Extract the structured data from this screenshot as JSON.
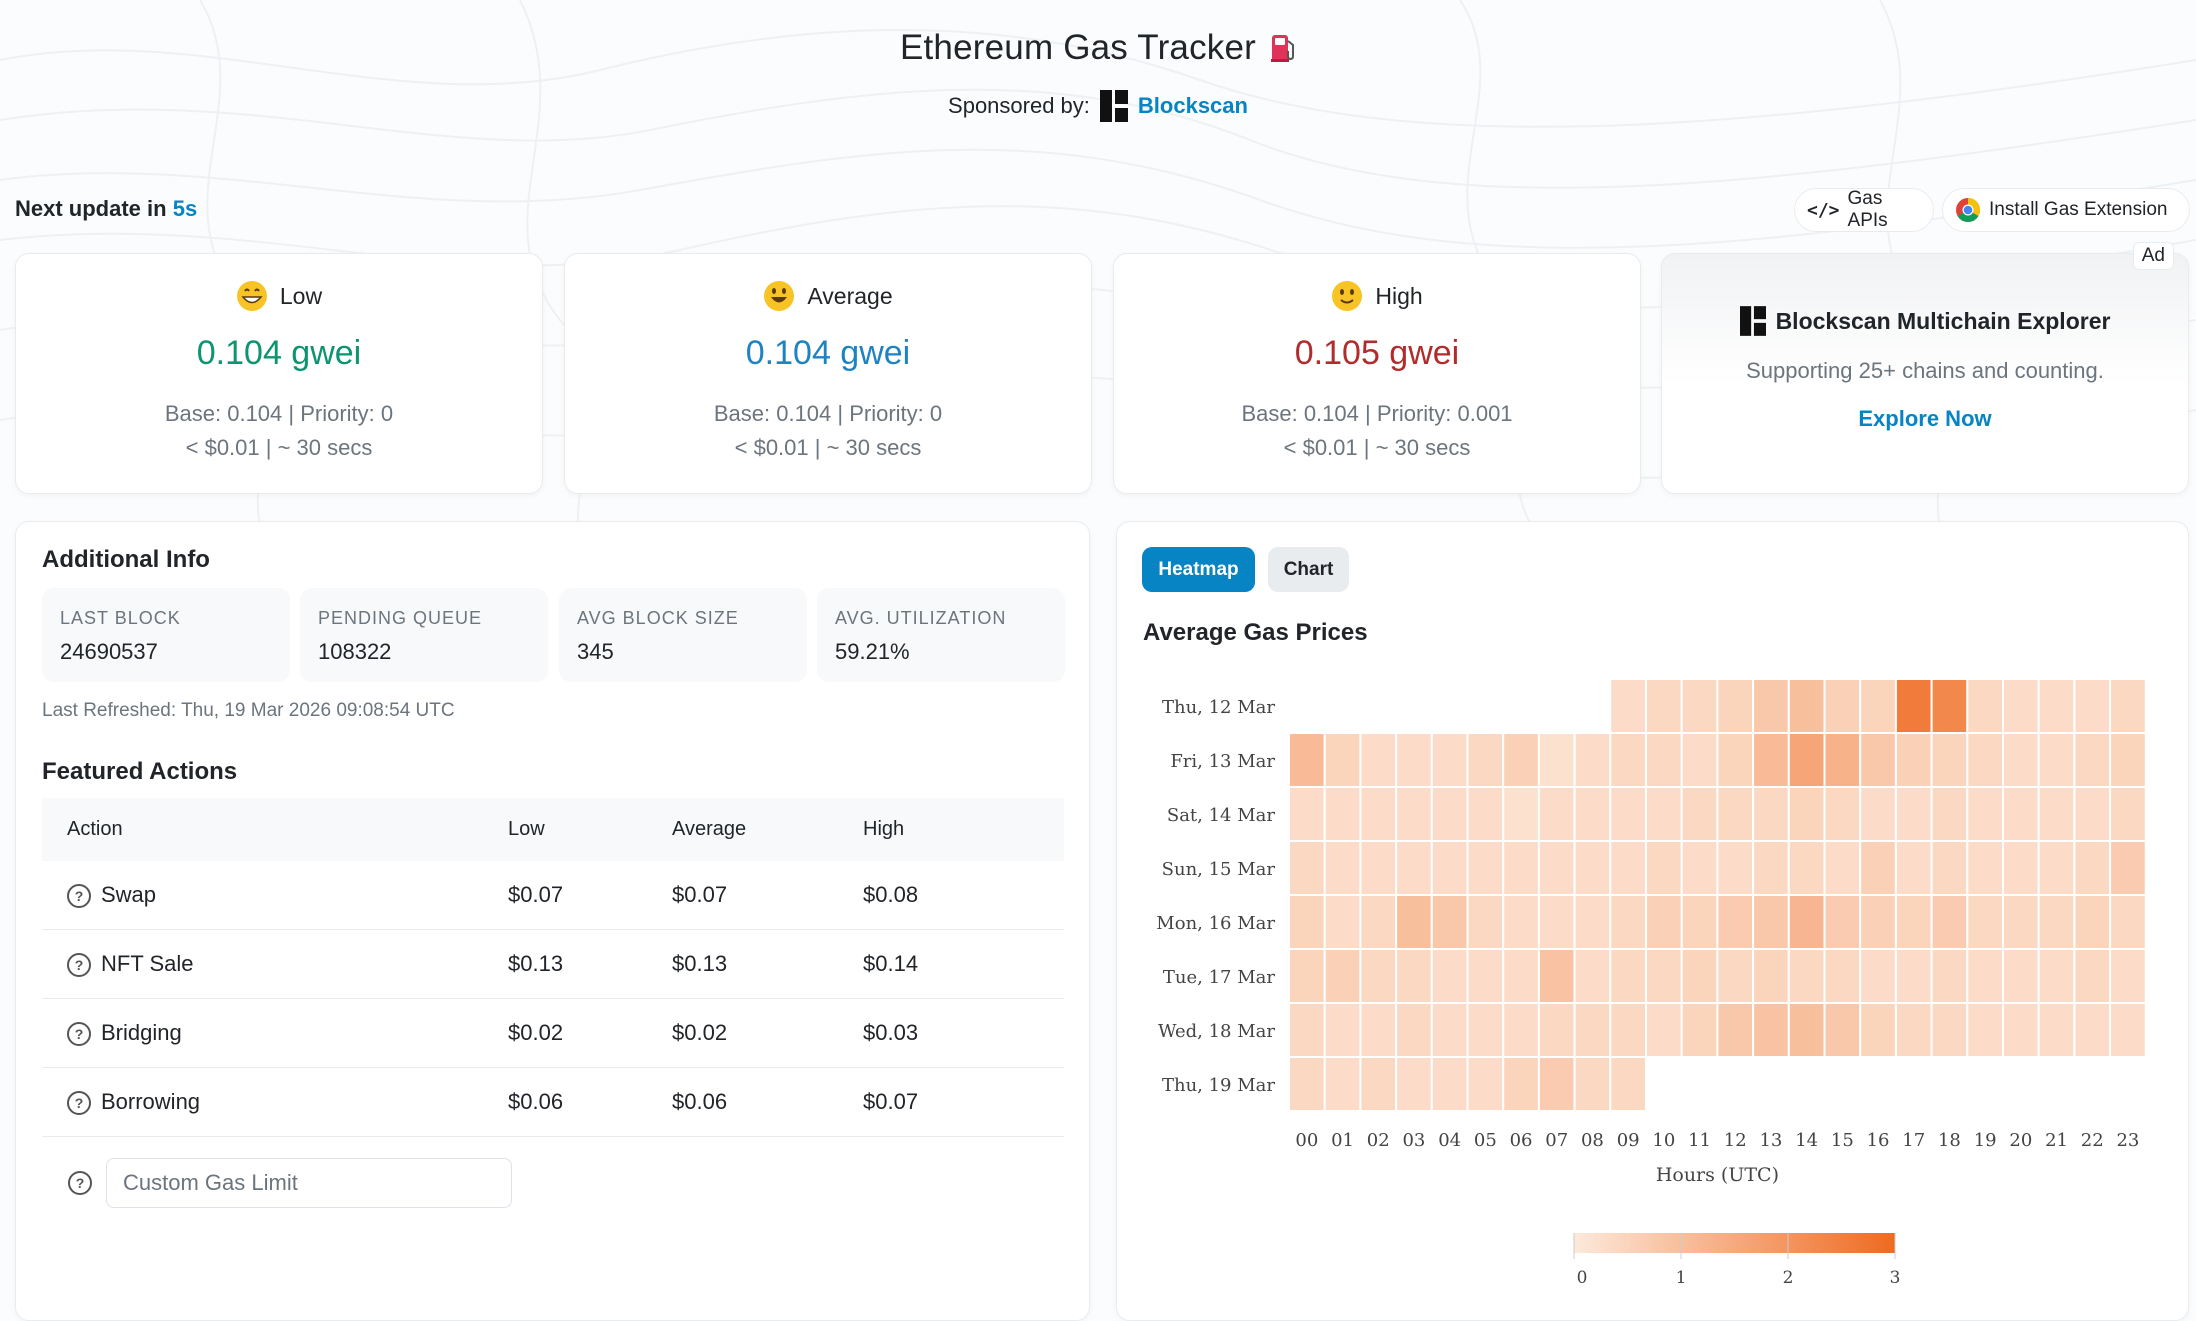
{
  "header": {
    "title": "Ethereum Gas Tracker",
    "sponsored_by": "Sponsored by:",
    "sponsor_name": "Blockscan"
  },
  "update": {
    "prefix": "Next update in",
    "seconds": "5s"
  },
  "top_buttons": {
    "gas_apis": "Gas APIs",
    "install_extension": "Install Gas Extension"
  },
  "gas_cards": [
    {
      "label": "Low",
      "value": "0.104 gwei",
      "detail": "Base: 0.104 | Priority: 0",
      "cost": "< $0.01 | ~ 30 secs",
      "color": "#0d9470"
    },
    {
      "label": "Average",
      "value": "0.104 gwei",
      "detail": "Base: 0.104 | Priority: 0",
      "cost": "< $0.01 | ~ 30 secs",
      "color": "#1e83c3"
    },
    {
      "label": "High",
      "value": "0.105 gwei",
      "detail": "Base: 0.104 | Priority: 0.001",
      "cost": "< $0.01 | ~ 30 secs",
      "color": "#b12d2d"
    }
  ],
  "ad": {
    "badge": "Ad",
    "title": "Blockscan Multichain Explorer",
    "subtitle": "Supporting 25+ chains and counting.",
    "link": "Explore Now"
  },
  "additional_info": {
    "title": "Additional Info",
    "stats": [
      {
        "label": "Last Block",
        "value": "24690537"
      },
      {
        "label": "Pending Queue",
        "value": "108322"
      },
      {
        "label": "Avg Block Size",
        "value": "345"
      },
      {
        "label": "Avg. Utilization",
        "value": "59.21%"
      }
    ],
    "last_refreshed": "Last Refreshed: Thu, 19 Mar 2026 09:08:54 UTC"
  },
  "featured_actions": {
    "title": "Featured Actions",
    "columns": [
      "Action",
      "Low",
      "Average",
      "High"
    ],
    "rows": [
      {
        "action": "Swap",
        "low": "$0.07",
        "average": "$0.07",
        "high": "$0.08"
      },
      {
        "action": "NFT Sale",
        "low": "$0.13",
        "average": "$0.13",
        "high": "$0.14"
      },
      {
        "action": "Bridging",
        "low": "$0.02",
        "average": "$0.02",
        "high": "$0.03"
      },
      {
        "action": "Borrowing",
        "low": "$0.06",
        "average": "$0.06",
        "high": "$0.07"
      }
    ],
    "custom_placeholder": "Custom Gas Limit"
  },
  "tabs": {
    "heatmap": "Heatmap",
    "chart": "Chart",
    "active": "heatmap"
  },
  "chart_data": {
    "type": "heatmap",
    "title": "Average Gas Prices",
    "xlabel": "Hours (UTC)",
    "ylabel": "",
    "x": [
      "00",
      "01",
      "02",
      "03",
      "04",
      "05",
      "06",
      "07",
      "08",
      "09",
      "10",
      "11",
      "12",
      "13",
      "14",
      "15",
      "16",
      "17",
      "18",
      "19",
      "20",
      "21",
      "22",
      "23"
    ],
    "y": [
      "Thu, 12 Mar",
      "Fri, 13 Mar",
      "Sat, 14 Mar",
      "Sun, 15 Mar",
      "Mon, 16 Mar",
      "Tue, 17 Mar",
      "Wed, 18 Mar",
      "Thu, 19 Mar"
    ],
    "values": [
      [
        null,
        null,
        null,
        null,
        null,
        null,
        null,
        null,
        null,
        0.3,
        0.4,
        0.4,
        0.5,
        0.8,
        1.0,
        0.6,
        0.5,
        2.6,
        2.3,
        0.4,
        0.3,
        0.3,
        0.3,
        0.4
      ],
      [
        1.1,
        0.5,
        0.3,
        0.3,
        0.3,
        0.4,
        0.6,
        0.2,
        0.3,
        0.4,
        0.4,
        0.3,
        0.5,
        1.1,
        1.6,
        1.3,
        0.8,
        0.6,
        0.5,
        0.4,
        0.3,
        0.3,
        0.4,
        0.5
      ],
      [
        0.3,
        0.3,
        0.3,
        0.3,
        0.3,
        0.3,
        0.2,
        0.3,
        0.3,
        0.3,
        0.3,
        0.4,
        0.4,
        0.4,
        0.5,
        0.4,
        0.3,
        0.3,
        0.4,
        0.3,
        0.3,
        0.3,
        0.3,
        0.4
      ],
      [
        0.4,
        0.3,
        0.3,
        0.3,
        0.3,
        0.3,
        0.3,
        0.3,
        0.3,
        0.3,
        0.4,
        0.3,
        0.3,
        0.4,
        0.4,
        0.3,
        0.6,
        0.3,
        0.4,
        0.3,
        0.3,
        0.3,
        0.4,
        0.7
      ],
      [
        0.5,
        0.3,
        0.4,
        1.0,
        0.8,
        0.4,
        0.3,
        0.3,
        0.3,
        0.4,
        0.6,
        0.5,
        0.7,
        0.8,
        1.2,
        0.7,
        0.6,
        0.5,
        0.7,
        0.4,
        0.4,
        0.4,
        0.5,
        0.4
      ],
      [
        0.5,
        0.6,
        0.4,
        0.4,
        0.3,
        0.3,
        0.3,
        0.9,
        0.3,
        0.4,
        0.4,
        0.5,
        0.4,
        0.5,
        0.4,
        0.4,
        0.3,
        0.3,
        0.4,
        0.3,
        0.3,
        0.3,
        0.4,
        0.3
      ],
      [
        0.4,
        0.3,
        0.3,
        0.4,
        0.3,
        0.3,
        0.3,
        0.4,
        0.4,
        0.4,
        0.3,
        0.5,
        0.8,
        0.9,
        1.0,
        0.8,
        0.5,
        0.4,
        0.4,
        0.3,
        0.3,
        0.3,
        0.3,
        0.3
      ],
      [
        0.4,
        0.3,
        0.4,
        0.3,
        0.3,
        0.3,
        0.5,
        0.7,
        0.4,
        0.4,
        null,
        null,
        null,
        null,
        null,
        null,
        null,
        null,
        null,
        null,
        null,
        null,
        null,
        null
      ]
    ],
    "scale": {
      "min": 0,
      "max": 3,
      "ticks": [
        0,
        1,
        2,
        3
      ],
      "color_low": "#fde9db",
      "color_high": "#ee6a21"
    }
  }
}
